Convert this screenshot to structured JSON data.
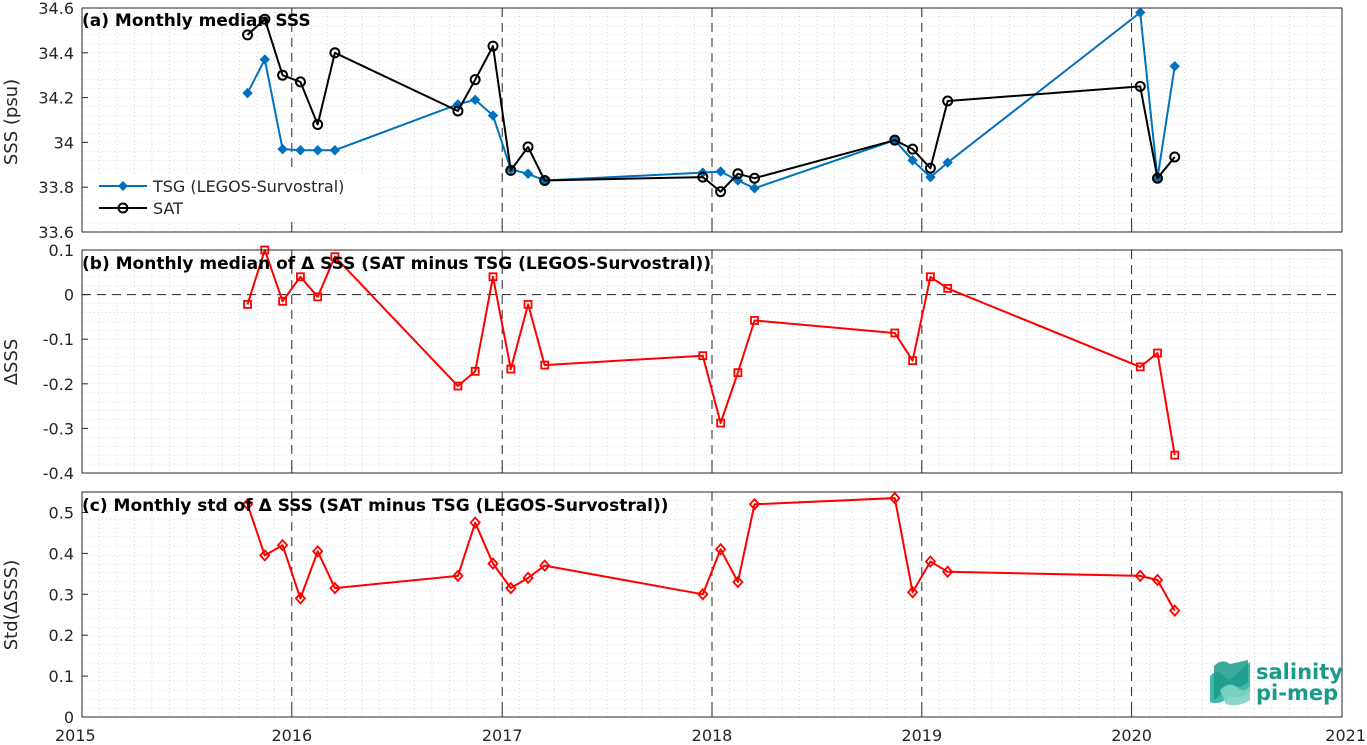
{
  "colors": {
    "tsg": "#0072bd",
    "sat": "#000000",
    "delta": "#ff0000",
    "brand": "#1a9a8a"
  },
  "brand": {
    "line1": "salinity",
    "line2": "pi-mep"
  },
  "x_axis": {
    "range": [
      "2015-01-01",
      "2021-01-01"
    ],
    "tick_dates": [
      "2015-01-01",
      "2016-01-01",
      "2017-01-01",
      "2018-01-01",
      "2019-01-01",
      "2020-01-01",
      "2021-01-01"
    ],
    "tick_labels": [
      "2015",
      "2016",
      "2017",
      "2018",
      "2019",
      "2020",
      "2021"
    ],
    "year_dividers": [
      "2016-01-01",
      "2017-01-01",
      "2018-01-01",
      "2019-01-01",
      "2020-01-01"
    ]
  },
  "chart_data": [
    {
      "type": "line",
      "title": "(a) Monthly median SSS",
      "ylabel": "SSS (psu)",
      "ylim": [
        33.6,
        34.6
      ],
      "yticks": [
        33.6,
        33.8,
        34,
        34.2,
        34.4,
        34.6
      ],
      "ytick_labels": [
        "33.6",
        "33.8",
        "34",
        "34.2",
        "34.4",
        "34.6"
      ],
      "grid": true,
      "legend_position": "lower-left",
      "series": [
        {
          "name": "TSG (LEGOS-Survostral)",
          "marker": "diamond",
          "x": [
            "2015-10-16",
            "2015-11-15",
            "2015-12-16",
            "2016-01-16",
            "2016-02-15",
            "2016-03-16",
            "2016-10-16",
            "2016-11-15",
            "2016-12-16",
            "2017-01-16",
            "2017-02-15",
            "2017-03-16",
            "2017-12-16",
            "2018-01-16",
            "2018-02-15",
            "2018-03-16",
            "2018-11-15",
            "2018-12-16",
            "2019-01-16",
            "2019-02-15",
            "2020-01-16",
            "2020-02-15",
            "2020-03-16"
          ],
          "values": [
            34.22,
            34.37,
            33.97,
            33.965,
            33.965,
            33.965,
            34.17,
            34.19,
            34.12,
            33.88,
            33.86,
            33.83,
            33.865,
            33.87,
            33.83,
            33.795,
            34.01,
            33.92,
            33.845,
            33.91,
            34.58,
            33.84,
            34.34
          ]
        },
        {
          "name": "SAT",
          "marker": "circle",
          "x": [
            "2015-10-16",
            "2015-11-15",
            "2015-12-16",
            "2016-01-16",
            "2016-02-15",
            "2016-03-16",
            "2016-10-16",
            "2016-11-15",
            "2016-12-16",
            "2017-01-16",
            "2017-02-15",
            "2017-03-16",
            "2017-12-16",
            "2018-01-16",
            "2018-02-15",
            "2018-03-16",
            "2018-11-15",
            "2018-12-16",
            "2019-01-16",
            "2019-02-15",
            "2020-01-16",
            "2020-02-15",
            "2020-03-16"
          ],
          "values": [
            34.48,
            34.55,
            34.3,
            34.27,
            34.08,
            34.4,
            34.14,
            34.28,
            34.43,
            33.875,
            33.98,
            33.83,
            33.845,
            33.78,
            33.86,
            33.84,
            34.01,
            33.97,
            33.885,
            34.185,
            34.25,
            33.84,
            33.935
          ]
        }
      ]
    },
    {
      "type": "line",
      "title": "(b) Monthly median of Δ SSS (SAT minus TSG (LEGOS-Survostral))",
      "ylabel": "ΔSSS",
      "ylim": [
        -0.4,
        0.1
      ],
      "yticks": [
        -0.4,
        -0.3,
        -0.2,
        -0.1,
        0,
        0.1
      ],
      "ytick_labels": [
        "-0.4",
        "-0.3",
        "-0.2",
        "-0.1",
        "0",
        "0.1"
      ],
      "grid": true,
      "zero_line": true,
      "series": [
        {
          "marker": "square",
          "x": [
            "2015-10-16",
            "2015-11-15",
            "2015-12-16",
            "2016-01-16",
            "2016-02-15",
            "2016-03-16",
            "2016-10-16",
            "2016-11-15",
            "2016-12-16",
            "2017-01-16",
            "2017-02-15",
            "2017-03-16",
            "2017-12-16",
            "2018-01-16",
            "2018-02-15",
            "2018-03-16",
            "2018-11-15",
            "2018-12-16",
            "2019-01-16",
            "2019-02-15",
            "2020-01-16",
            "2020-02-15",
            "2020-03-16"
          ],
          "values": [
            -0.022,
            0.1,
            -0.015,
            0.04,
            -0.005,
            0.085,
            -0.205,
            -0.172,
            0.04,
            -0.167,
            -0.022,
            -0.158,
            -0.137,
            -0.288,
            -0.175,
            -0.058,
            -0.086,
            -0.148,
            0.04,
            0.014,
            -0.162,
            -0.131,
            -0.36
          ]
        }
      ]
    },
    {
      "type": "line",
      "title": "(c) Monthly std of Δ SSS (SAT minus TSG (LEGOS-Survostral))",
      "ylabel": "Std(ΔSSS)",
      "ylim": [
        0,
        0.55
      ],
      "yticks": [
        0,
        0.1,
        0.2,
        0.3,
        0.4,
        0.5
      ],
      "ytick_labels": [
        "0",
        "0.1",
        "0.2",
        "0.3",
        "0.4",
        "0.5"
      ],
      "grid": true,
      "series": [
        {
          "marker": "diamond-open",
          "x": [
            "2015-10-16",
            "2015-11-15",
            "2015-12-16",
            "2016-01-16",
            "2016-02-15",
            "2016-03-16",
            "2016-10-16",
            "2016-11-15",
            "2016-12-16",
            "2017-01-16",
            "2017-02-15",
            "2017-03-16",
            "2017-12-16",
            "2018-01-16",
            "2018-02-15",
            "2018-03-16",
            "2018-11-15",
            "2018-12-16",
            "2019-01-16",
            "2019-02-15",
            "2020-01-16",
            "2020-02-15",
            "2020-03-16"
          ],
          "values": [
            0.52,
            0.395,
            0.42,
            0.29,
            0.405,
            0.315,
            0.345,
            0.475,
            0.375,
            0.315,
            0.34,
            0.37,
            0.3,
            0.41,
            0.33,
            0.52,
            0.535,
            0.305,
            0.38,
            0.355,
            0.345,
            0.335,
            0.26
          ]
        }
      ]
    }
  ]
}
